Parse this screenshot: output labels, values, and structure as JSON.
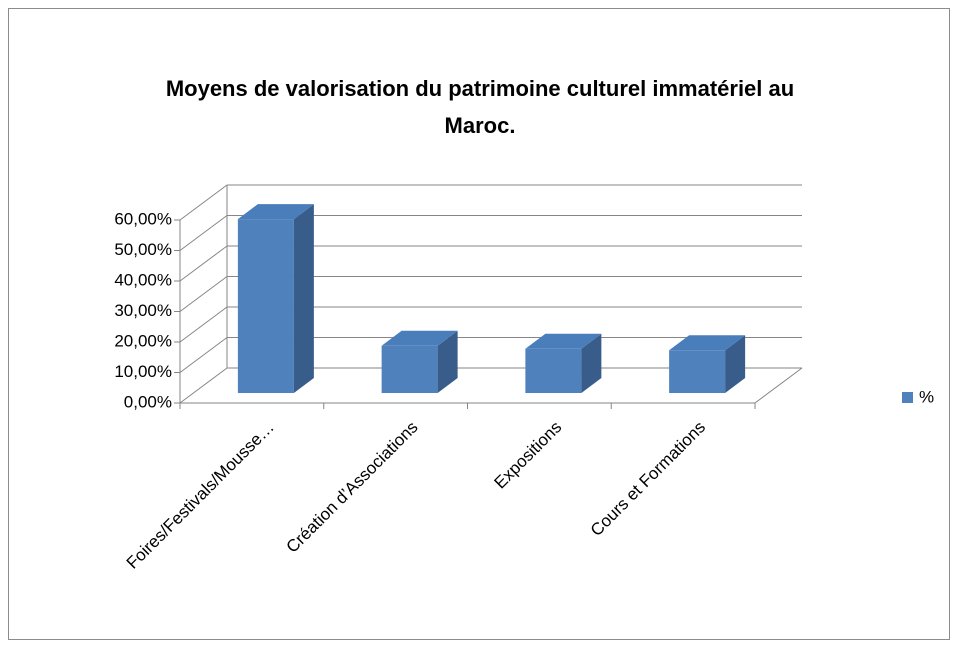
{
  "chart_data": {
    "type": "bar3d",
    "title": "Moyens de valorisation du patrimoine culturel immatériel au Maroc.",
    "categories": [
      "Foires/Festivals/Mousse…",
      "Création d’Associations",
      "Expositions",
      "Cours et Formations"
    ],
    "series": [
      {
        "name": "%",
        "color": "#4f81bd",
        "values": [
          57,
          15.5,
          14.5,
          14
        ]
      }
    ],
    "ylim": [
      0,
      60
    ],
    "yticks": [
      {
        "value": 0,
        "label": "0,00%"
      },
      {
        "value": 10,
        "label": "10,00%"
      },
      {
        "value": 20,
        "label": "20,00%"
      },
      {
        "value": 30,
        "label": "30,00%"
      },
      {
        "value": 40,
        "label": "40,00%"
      },
      {
        "value": 50,
        "label": "50,00%"
      },
      {
        "value": 60,
        "label": "60,00%"
      }
    ],
    "grid": true,
    "legend": "right"
  }
}
